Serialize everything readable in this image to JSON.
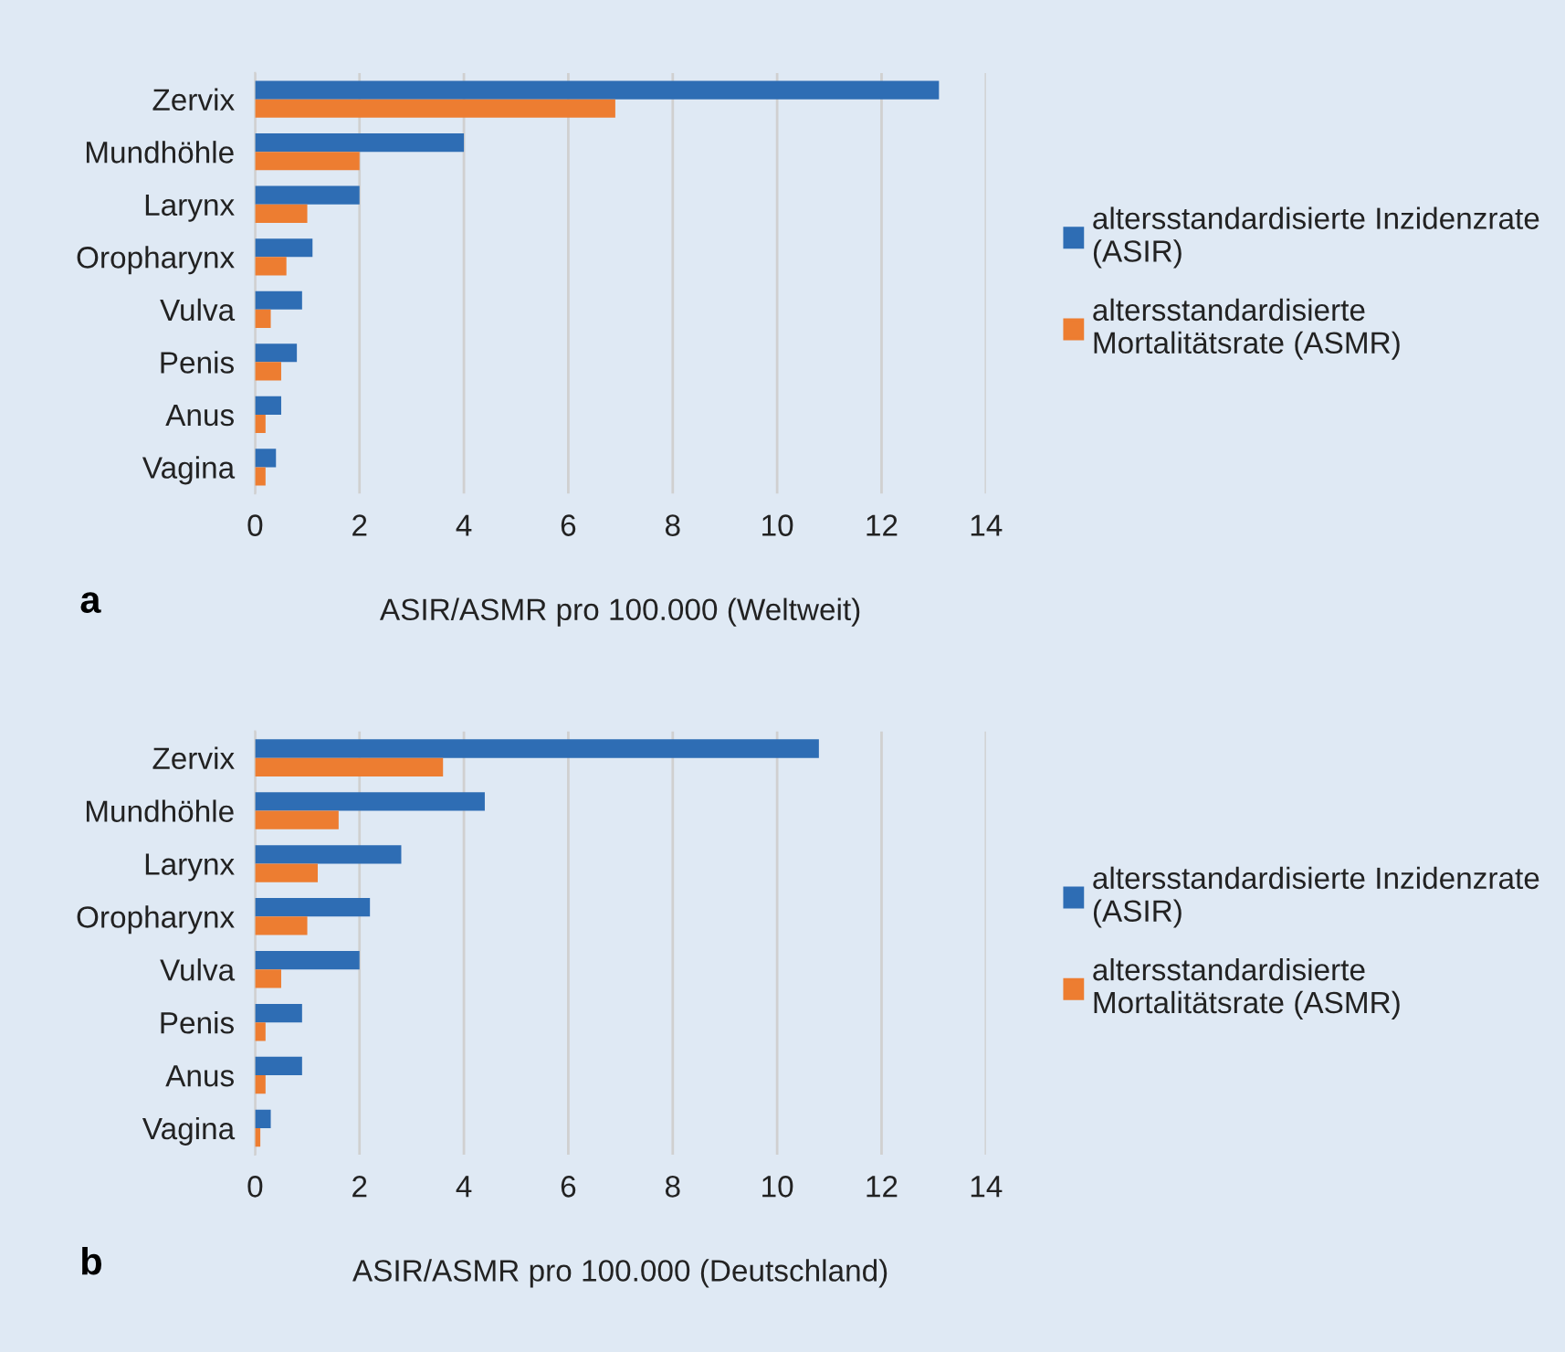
{
  "chart_data": [
    {
      "type": "bar",
      "orientation": "horizontal",
      "xlabel": "ASIR/ASMR pro 100.000 (Weltweit)",
      "annotations": [
        "a"
      ],
      "categories": [
        "Zervix",
        "Mundhöhle",
        "Larynx",
        "Oropharynx",
        "Vulva",
        "Penis",
        "Anus",
        "Vagina"
      ],
      "series": [
        {
          "name": "altersstandardisierte Inzidenzrate\n(ASIR)",
          "color": "#2e6db4",
          "values": [
            13.1,
            4.0,
            2.0,
            1.1,
            0.9,
            0.8,
            0.5,
            0.4
          ]
        },
        {
          "name": "altersstandardisierte\nMortalitätsrate (ASMR)",
          "color": "#ed7d31",
          "values": [
            6.9,
            2.0,
            1.0,
            0.6,
            0.3,
            0.5,
            0.2,
            0.2
          ]
        }
      ],
      "xlim": [
        0,
        14
      ],
      "xticks": [
        0,
        2,
        4,
        6,
        8,
        10,
        12,
        14
      ],
      "grid": "x",
      "legend": "right"
    },
    {
      "type": "bar",
      "orientation": "horizontal",
      "xlabel": "ASIR/ASMR pro 100.000 (Deutschland)",
      "annotations": [
        "b"
      ],
      "categories": [
        "Zervix",
        "Mundhöhle",
        "Larynx",
        "Oropharynx",
        "Vulva",
        "Penis",
        "Anus",
        "Vagina"
      ],
      "series": [
        {
          "name": "altersstandardisierte Inzidenzrate\n(ASIR)",
          "color": "#2e6db4",
          "values": [
            10.8,
            4.4,
            2.8,
            2.2,
            2.0,
            0.9,
            0.9,
            0.3
          ]
        },
        {
          "name": "altersstandardisierte\nMortalitätsrate (ASMR)",
          "color": "#ed7d31",
          "values": [
            3.6,
            1.6,
            1.2,
            1.0,
            0.5,
            0.2,
            0.2,
            0.1
          ]
        }
      ],
      "xlim": [
        0,
        14
      ],
      "xticks": [
        0,
        2,
        4,
        6,
        8,
        10,
        12,
        14
      ],
      "grid": "x",
      "legend": "right"
    }
  ]
}
